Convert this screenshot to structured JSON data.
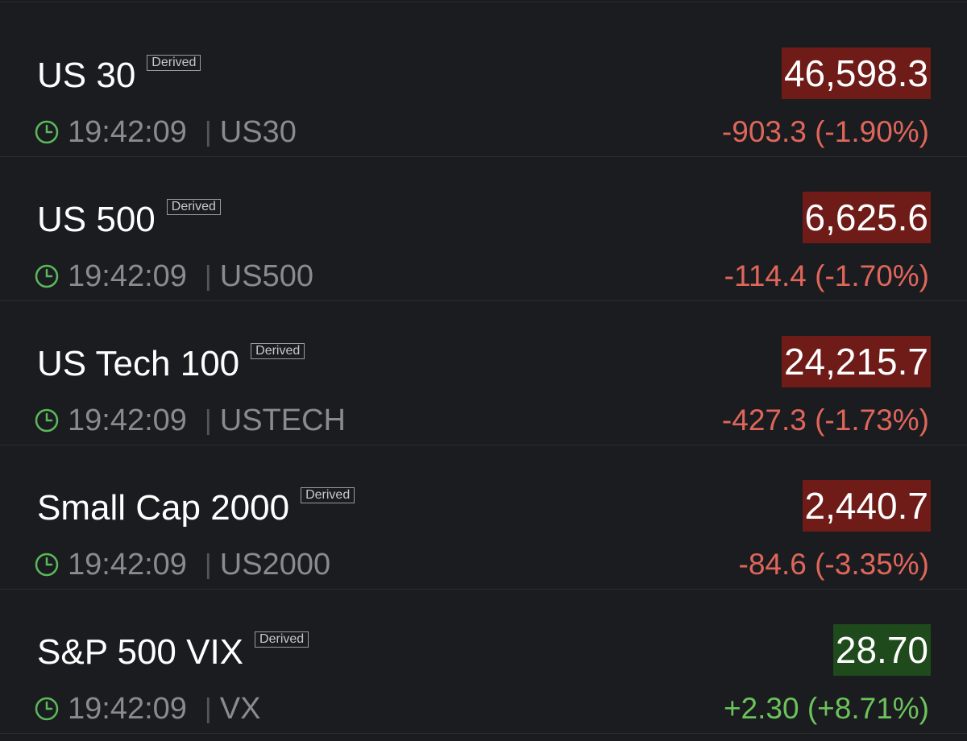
{
  "rows": [
    {
      "name": "US 30",
      "badge": "Derived",
      "time": "19:42:09",
      "symbol": "US30",
      "price": "46,598.3",
      "change": "-903.3 (-1.90%)",
      "price_bg": "#6f1b18",
      "change_color": "#e0665b"
    },
    {
      "name": "US 500",
      "badge": "Derived",
      "time": "19:42:09",
      "symbol": "US500",
      "price": "6,625.6",
      "change": "-114.4 (-1.70%)",
      "price_bg": "#6f1b18",
      "change_color": "#e0665b"
    },
    {
      "name": "US Tech 100",
      "badge": "Derived",
      "time": "19:42:09",
      "symbol": "USTECH",
      "price": "24,215.7",
      "change": "-427.3 (-1.73%)",
      "price_bg": "#6f1b18",
      "change_color": "#e0665b"
    },
    {
      "name": "Small Cap 2000",
      "badge": "Derived",
      "time": "19:42:09",
      "symbol": "US2000",
      "price": "2,440.7",
      "change": "-84.6 (-3.35%)",
      "price_bg": "#6f1b18",
      "change_color": "#e0665b"
    },
    {
      "name": "S&P 500 VIX",
      "badge": "Derived",
      "time": "19:42:09",
      "symbol": "VX",
      "price": "28.70",
      "change": "+2.30 (+8.71%)",
      "price_bg": "#1f4a1c",
      "change_color": "#6cc35a"
    }
  ]
}
